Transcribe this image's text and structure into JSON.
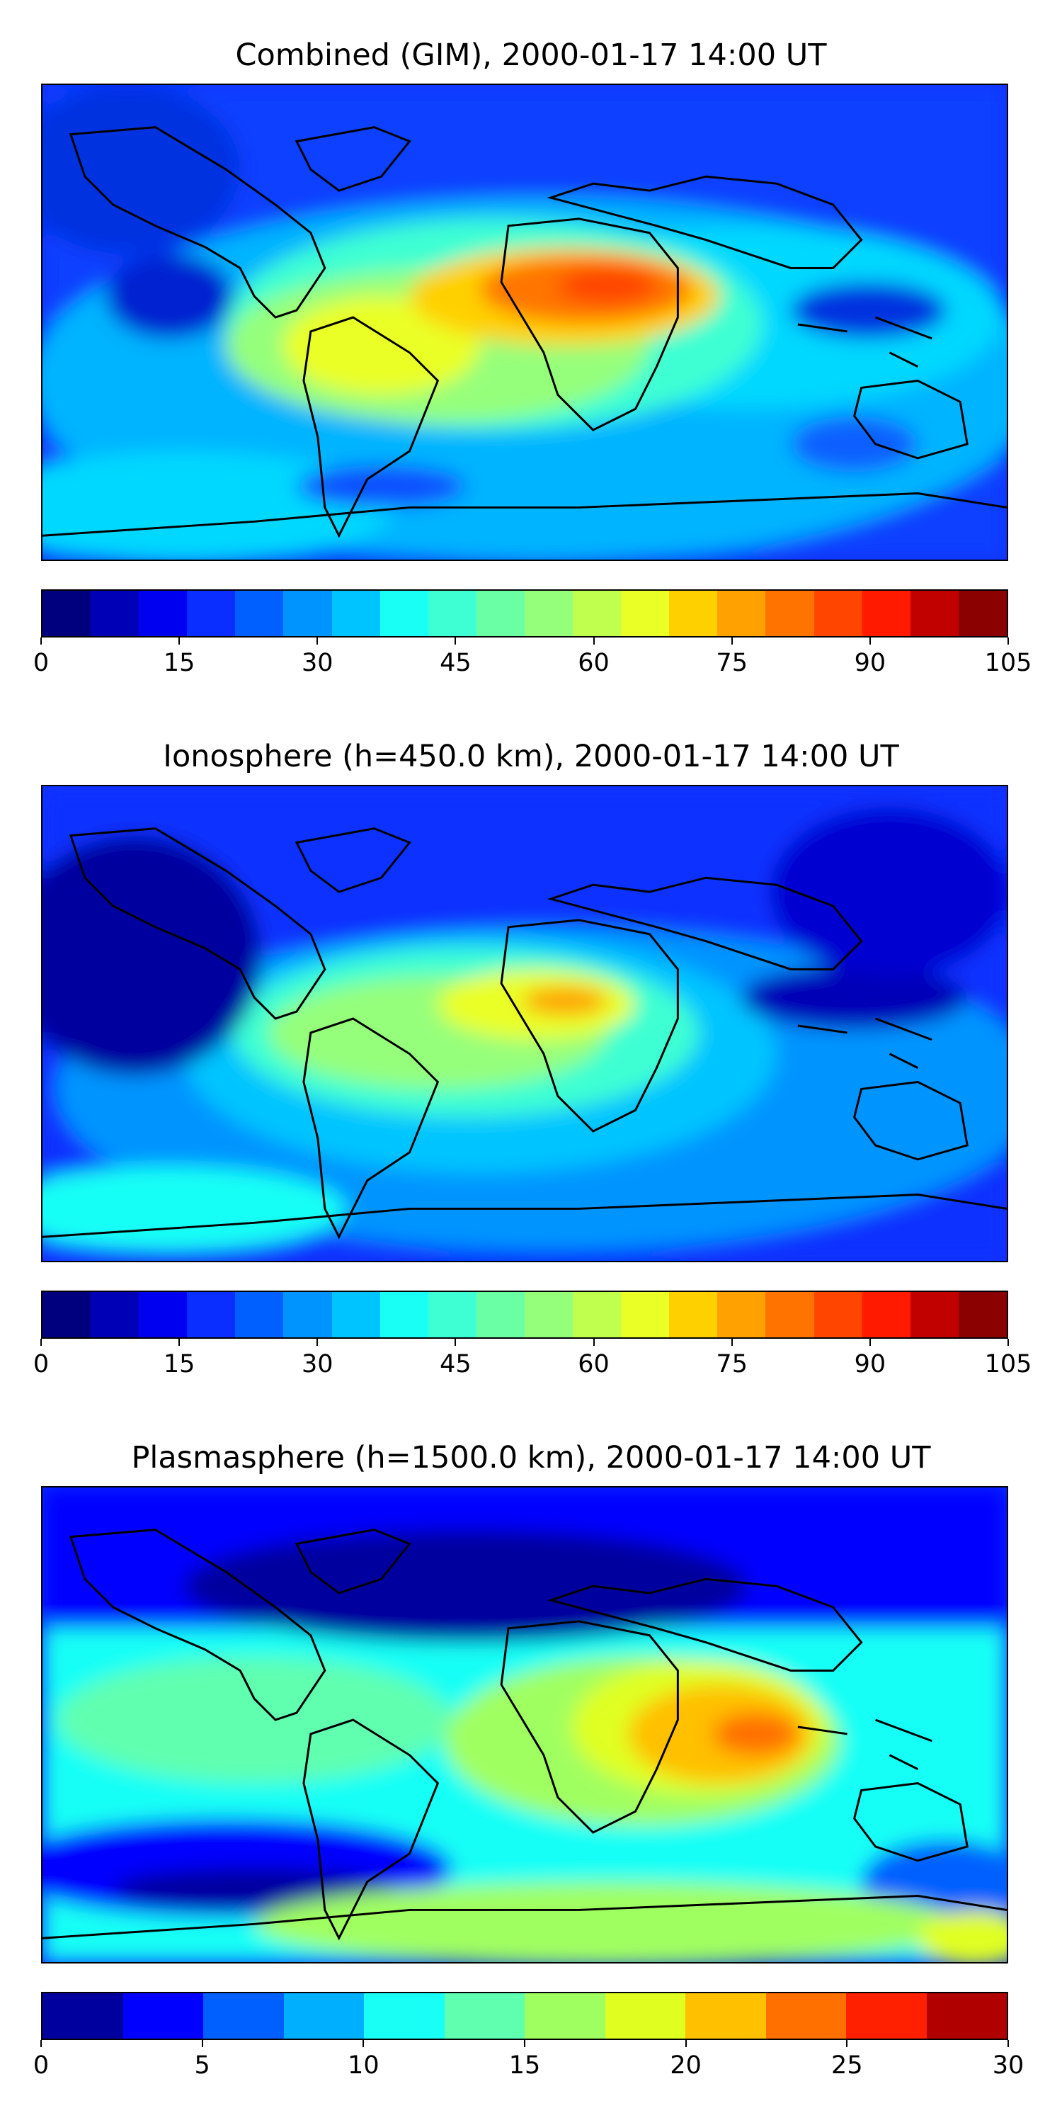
{
  "panels": [
    {
      "title": "Combined (GIM), 2000-01-17 14:00 UT",
      "colorbar": {
        "colors": [
          "#00007f",
          "#0000b7",
          "#0000f1",
          "#0a2eff",
          "#0060ff",
          "#0094ff",
          "#00c4ff",
          "#19fff6",
          "#3effd3",
          "#6bffa5",
          "#95ff7b",
          "#c1ff4e",
          "#eaff26",
          "#ffd000",
          "#ffa100",
          "#ff7400",
          "#ff4500",
          "#ff1a00",
          "#c10000",
          "#8b0000"
        ],
        "tick_labels": [
          "0",
          "15",
          "30",
          "45",
          "60",
          "75",
          "90",
          "105"
        ],
        "tick_values": [
          0,
          15,
          30,
          45,
          60,
          75,
          90,
          105
        ],
        "range": [
          0,
          105
        ]
      }
    },
    {
      "title": "Ionosphere  (h=450.0 km), 2000-01-17 14:00 UT",
      "colorbar": {
        "colors": [
          "#00007f",
          "#0000b7",
          "#0000f1",
          "#0a2eff",
          "#0060ff",
          "#0094ff",
          "#00c4ff",
          "#19fff6",
          "#3effd3",
          "#6bffa5",
          "#95ff7b",
          "#c1ff4e",
          "#eaff26",
          "#ffd000",
          "#ffa100",
          "#ff7400",
          "#ff4500",
          "#ff1a00",
          "#c10000",
          "#8b0000"
        ],
        "tick_labels": [
          "0",
          "15",
          "30",
          "45",
          "60",
          "75",
          "90",
          "105"
        ],
        "tick_values": [
          0,
          15,
          30,
          45,
          60,
          75,
          90,
          105
        ],
        "range": [
          0,
          105
        ]
      }
    },
    {
      "title": "Plasmasphere (h=1500.0 km), 2000-01-17 14:00 UT",
      "colorbar": {
        "colors": [
          "#00009f",
          "#0000ff",
          "#0060ff",
          "#00b0ff",
          "#19fff6",
          "#60ffb0",
          "#a0ff60",
          "#e0ff20",
          "#ffc000",
          "#ff7000",
          "#ff2000",
          "#b00000"
        ],
        "tick_labels": [
          "0",
          "5",
          "10",
          "15",
          "20",
          "25",
          "30"
        ],
        "tick_values": [
          0,
          5,
          10,
          15,
          20,
          25,
          30
        ],
        "range": [
          0,
          30
        ]
      }
    }
  ]
}
